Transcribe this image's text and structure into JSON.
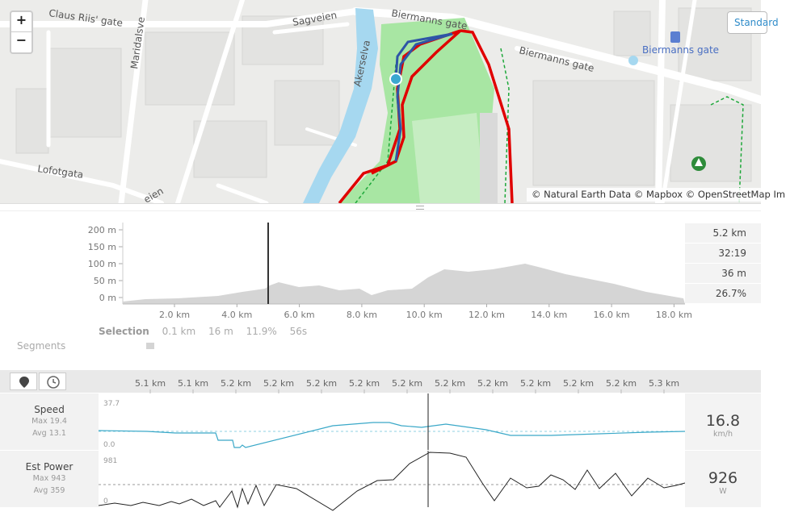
{
  "map": {
    "zoom_in": "+",
    "zoom_out": "−",
    "style_button": "Standard",
    "attribution": "© Natural Earth Data © Mapbox © OpenStreetMap Im",
    "street_labels": {
      "claus_riis": "Claus Riis' gate",
      "maridalsveien": "Maridalsve",
      "sagveien": "Sagveien",
      "biermanns_top": "Biermanns gate",
      "biermanns_right": "Biermanns gate",
      "akerselva": "Akerselva",
      "lofotgata": "Lofotgata",
      "veien": "eien",
      "poi_biermanns": "Biermanns gate"
    },
    "colors": {
      "route": "#e00000",
      "selection": "#2e55a6",
      "river": "#a6d8f0",
      "park": "#a8e6a3",
      "marker": "#3aa8d0"
    }
  },
  "elevation": {
    "y_ticks": [
      "200 m",
      "150 m",
      "100 m",
      "50 m",
      "0 m"
    ],
    "x_ticks": [
      "2.0 km",
      "4.0 km",
      "6.0 km",
      "8.0 km",
      "10.0 km",
      "12.0 km",
      "14.0 km",
      "16.0 km",
      "18.0 km"
    ],
    "stats": [
      "5.2 km",
      "32:19",
      "36 m",
      "26.7%"
    ],
    "selection_label": "Selection",
    "selection_values": [
      "0.1 km",
      "16 m",
      "11.9%",
      "56s"
    ],
    "segments_label": "Segments"
  },
  "toolbar": {
    "distance_icon": "map-pin-icon",
    "time_icon": "clock-icon",
    "x_ticks": [
      "5.1 km",
      "5.1 km",
      "5.2 km",
      "5.2 km",
      "5.2 km",
      "5.2 km",
      "5.2 km",
      "5.2 km",
      "5.2 km",
      "5.2 km",
      "5.2 km",
      "5.2 km",
      "5.3 km"
    ]
  },
  "speed": {
    "title": "Speed",
    "max": "Max 19.4",
    "avg": "Avg 13.1",
    "y_max": "37.7",
    "y_min": "0.0",
    "value": "16.8",
    "unit": "km/h",
    "color": "#3aa8c8"
  },
  "power": {
    "title": "Est Power",
    "max": "Max 943",
    "avg": "Avg 359",
    "y_max": "981",
    "y_min": "0",
    "value": "926",
    "unit": "W",
    "color": "#222222"
  }
}
